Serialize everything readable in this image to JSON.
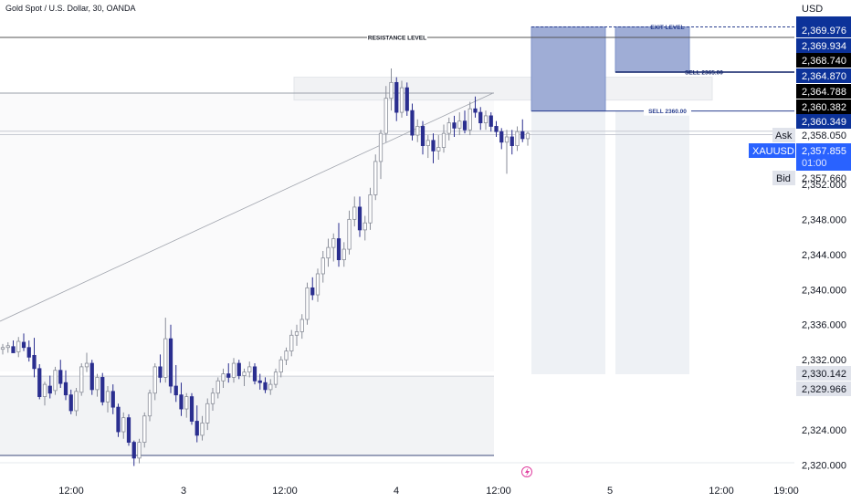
{
  "header": {
    "title": "Gold Spot / U.S. Dollar, 30, OANDA",
    "currency": "USD"
  },
  "colors": {
    "bull_body": "#ffffff",
    "bull_border": "#131722",
    "bear_body": "#2a2e8f",
    "blue_tag": "#2962ff",
    "navy_tag": "#0c3299",
    "black_tag": "#000000",
    "grey_tag": "#e0e3eb",
    "position_zone": "#9fadd6",
    "grid_line": "#555555"
  },
  "annotations": {
    "resistance": "RESISTANCE LEVEL",
    "exit": "EXIT LEVEL",
    "sell1": "SELL 2365.00",
    "sell2": "SELL 2360.00"
  },
  "price_tags": [
    {
      "value": "2,369.976",
      "style": "navy"
    },
    {
      "value": "2,369.934",
      "style": "navy"
    },
    {
      "value": "2,368.740",
      "style": "black"
    },
    {
      "value": "2,364.870",
      "style": "navy"
    },
    {
      "value": "2,364.788",
      "style": "black"
    },
    {
      "value": "2,360.382",
      "style": "black"
    },
    {
      "value": "2,360.349",
      "style": "navy"
    },
    {
      "value": "2,358.050",
      "style": "ask",
      "label": "Ask"
    },
    {
      "value": "2,357.855",
      "style": "symbol",
      "label": "XAUUSD",
      "sub": "01:00"
    },
    {
      "value": "2,357.660",
      "style": "bid",
      "label": "Bid"
    },
    {
      "value": "2,330.142",
      "style": "grey"
    },
    {
      "value": "2,329.966",
      "style": "grey"
    }
  ],
  "chart_data": {
    "type": "candlestick",
    "title": "Gold Spot / U.S. Dollar, 30, OANDA",
    "y_axis": {
      "unit": "USD",
      "range": [
        2318.5,
        2373.0
      ],
      "ticks": [
        "2,352.000",
        "2,348.000",
        "2,344.000",
        "2,340.000",
        "2,336.000",
        "2,332.000",
        "2,324.000",
        "2,320.000"
      ]
    },
    "x_axis": {
      "ticks": [
        "12:00",
        "3",
        "12:00",
        "4",
        "12:00",
        "5",
        "12:00",
        "19:00"
      ]
    },
    "levels": {
      "resistance": 2368.74,
      "exit": 2369.934,
      "sell_2365": 2364.788,
      "sell_2360": 2360.349,
      "ask": 2358.05,
      "bid": 2357.66,
      "support_top": 2330.142,
      "lower_line": 2321.1,
      "upper_zone_low": 2361.6,
      "upper_zone_high": 2364.2
    },
    "candles": [
      [
        2333.2,
        2333.8,
        2332.6,
        2333.4
      ],
      [
        2333.4,
        2334.0,
        2332.8,
        2333.6
      ],
      [
        2333.5,
        2334.2,
        2332.9,
        2332.8
      ],
      [
        2332.9,
        2334.6,
        2332.3,
        2334.1
      ],
      [
        2334.0,
        2335.0,
        2333.0,
        2333.4
      ],
      [
        2333.4,
        2334.2,
        2331.8,
        2332.3
      ],
      [
        2332.5,
        2334.5,
        2330.0,
        2331.0
      ],
      [
        2331.0,
        2331.5,
        2327.5,
        2327.8
      ],
      [
        2327.8,
        2329.5,
        2326.8,
        2329.2
      ],
      [
        2329.0,
        2330.2,
        2327.6,
        2328.2
      ],
      [
        2328.5,
        2331.2,
        2328.0,
        2330.8
      ],
      [
        2330.8,
        2332.0,
        2328.8,
        2329.3
      ],
      [
        2329.4,
        2330.8,
        2327.4,
        2328.0
      ],
      [
        2328.0,
        2328.6,
        2325.8,
        2326.2
      ],
      [
        2326.2,
        2328.8,
        2325.6,
        2328.4
      ],
      [
        2328.3,
        2331.6,
        2327.9,
        2331.2
      ],
      [
        2331.2,
        2332.8,
        2330.6,
        2331.6
      ],
      [
        2331.6,
        2332.0,
        2328.0,
        2328.6
      ],
      [
        2328.6,
        2330.4,
        2327.8,
        2330.0
      ],
      [
        2330.0,
        2330.5,
        2326.8,
        2327.2
      ],
      [
        2327.2,
        2329.0,
        2326.0,
        2328.4
      ],
      [
        2328.4,
        2329.2,
        2325.8,
        2326.6
      ],
      [
        2326.6,
        2327.0,
        2323.2,
        2323.8
      ],
      [
        2323.8,
        2326.0,
        2323.0,
        2325.4
      ],
      [
        2325.4,
        2325.8,
        2322.2,
        2322.6
      ],
      [
        2322.6,
        2322.8,
        2319.9,
        2320.8
      ],
      [
        2320.8,
        2323.0,
        2320.2,
        2322.6
      ],
      [
        2322.6,
        2326.0,
        2322.0,
        2325.6
      ],
      [
        2325.6,
        2328.6,
        2325.0,
        2328.2
      ],
      [
        2328.2,
        2331.6,
        2327.4,
        2331.2
      ],
      [
        2331.2,
        2332.6,
        2329.4,
        2330.0
      ],
      [
        2330.0,
        2336.8,
        2329.4,
        2334.4
      ],
      [
        2334.4,
        2336.0,
        2328.2,
        2329.0
      ],
      [
        2329.0,
        2331.4,
        2327.2,
        2328.0
      ],
      [
        2328.0,
        2329.4,
        2325.6,
        2326.4
      ],
      [
        2326.4,
        2328.2,
        2325.4,
        2327.8
      ],
      [
        2327.8,
        2328.2,
        2324.6,
        2325.0
      ],
      [
        2325.0,
        2326.8,
        2322.6,
        2323.4
      ],
      [
        2323.4,
        2325.6,
        2322.8,
        2324.8
      ],
      [
        2324.8,
        2327.6,
        2324.0,
        2327.0
      ],
      [
        2327.0,
        2328.8,
        2326.2,
        2328.2
      ],
      [
        2328.2,
        2330.0,
        2327.6,
        2329.6
      ],
      [
        2329.6,
        2331.0,
        2328.8,
        2330.4
      ],
      [
        2330.4,
        2331.6,
        2329.4,
        2330.0
      ],
      [
        2330.0,
        2332.2,
        2329.4,
        2331.6
      ],
      [
        2331.6,
        2332.0,
        2329.8,
        2330.2
      ],
      [
        2330.2,
        2331.0,
        2329.0,
        2330.6
      ],
      [
        2330.6,
        2331.8,
        2330.0,
        2331.2
      ],
      [
        2331.2,
        2331.6,
        2329.2,
        2329.6
      ],
      [
        2329.6,
        2330.4,
        2328.6,
        2329.4
      ],
      [
        2329.4,
        2330.0,
        2328.2,
        2328.6
      ],
      [
        2328.6,
        2329.8,
        2328.0,
        2329.2
      ],
      [
        2329.2,
        2331.0,
        2328.8,
        2330.6
      ],
      [
        2330.6,
        2332.4,
        2330.0,
        2332.0
      ],
      [
        2332.0,
        2333.4,
        2331.4,
        2333.0
      ],
      [
        2333.0,
        2335.4,
        2332.4,
        2334.8
      ],
      [
        2334.8,
        2336.0,
        2333.6,
        2335.2
      ],
      [
        2335.2,
        2337.2,
        2334.4,
        2336.6
      ],
      [
        2336.6,
        2340.8,
        2336.0,
        2340.2
      ],
      [
        2340.2,
        2341.4,
        2338.8,
        2339.4
      ],
      [
        2339.4,
        2342.4,
        2338.6,
        2341.8
      ],
      [
        2341.8,
        2344.4,
        2340.8,
        2343.6
      ],
      [
        2343.6,
        2345.8,
        2342.6,
        2344.8
      ],
      [
        2344.8,
        2346.4,
        2343.2,
        2345.8
      ],
      [
        2345.8,
        2347.6,
        2342.6,
        2343.4
      ],
      [
        2343.4,
        2345.4,
        2342.6,
        2344.6
      ],
      [
        2344.6,
        2349.0,
        2344.0,
        2348.0
      ],
      [
        2348.0,
        2350.6,
        2347.2,
        2349.4
      ],
      [
        2349.4,
        2350.6,
        2346.0,
        2346.8
      ],
      [
        2346.8,
        2348.4,
        2345.6,
        2347.6
      ],
      [
        2347.6,
        2351.6,
        2346.8,
        2350.8
      ],
      [
        2350.8,
        2355.4,
        2350.2,
        2354.6
      ],
      [
        2354.6,
        2358.2,
        2352.6,
        2357.8
      ],
      [
        2357.8,
        2363.2,
        2356.8,
        2361.8
      ],
      [
        2361.8,
        2365.2,
        2360.4,
        2363.6
      ],
      [
        2363.6,
        2364.2,
        2359.2,
        2360.2
      ],
      [
        2360.2,
        2363.8,
        2359.6,
        2363.0
      ],
      [
        2363.0,
        2363.6,
        2359.8,
        2360.4
      ],
      [
        2360.4,
        2361.2,
        2357.0,
        2357.6
      ],
      [
        2357.6,
        2359.4,
        2356.8,
        2358.6
      ],
      [
        2358.6,
        2359.2,
        2355.4,
        2356.4
      ],
      [
        2356.4,
        2357.6,
        2355.0,
        2357.0
      ],
      [
        2357.0,
        2357.8,
        2354.4,
        2355.8
      ],
      [
        2355.8,
        2357.6,
        2354.8,
        2356.2
      ],
      [
        2356.2,
        2358.8,
        2355.6,
        2357.8
      ],
      [
        2357.8,
        2359.6,
        2357.0,
        2359.0
      ],
      [
        2359.0,
        2359.8,
        2357.4,
        2358.4
      ],
      [
        2358.4,
        2360.2,
        2357.6,
        2359.2
      ],
      [
        2359.2,
        2360.4,
        2357.8,
        2358.2
      ],
      [
        2358.2,
        2361.4,
        2357.6,
        2360.6
      ],
      [
        2360.6,
        2362.0,
        2359.6,
        2360.2
      ],
      [
        2360.2,
        2360.8,
        2358.2,
        2359.0
      ],
      [
        2359.0,
        2360.4,
        2358.2,
        2359.8
      ],
      [
        2359.8,
        2360.2,
        2358.0,
        2358.6
      ],
      [
        2358.6,
        2359.2,
        2357.4,
        2358.0
      ],
      [
        2358.0,
        2358.4,
        2356.0,
        2356.8
      ],
      [
        2356.8,
        2358.2,
        2353.2,
        2357.4
      ],
      [
        2357.4,
        2358.2,
        2355.4,
        2356.4
      ],
      [
        2356.4,
        2358.6,
        2355.8,
        2358.0
      ],
      [
        2358.0,
        2359.4,
        2356.8,
        2357.2
      ],
      [
        2357.2,
        2358.0,
        2356.4,
        2357.8
      ]
    ]
  }
}
